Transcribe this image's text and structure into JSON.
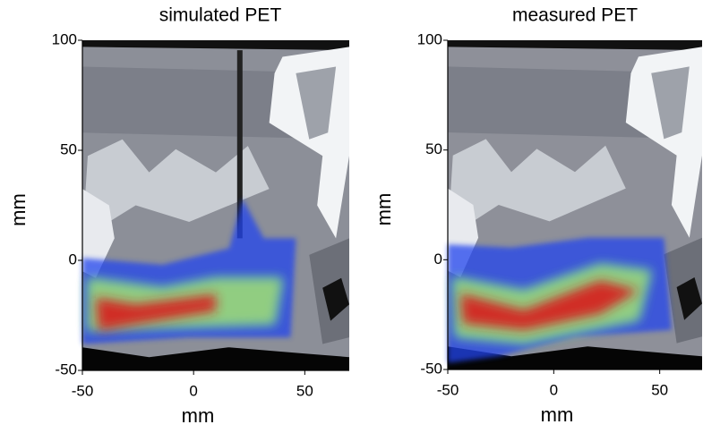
{
  "chart_data": [
    {
      "type": "image",
      "title": "simulated PET",
      "xlabel": "mm",
      "ylabel": "mm",
      "xlim": [
        -50,
        70
      ],
      "ylim": [
        -50,
        100
      ],
      "xticks": [
        -50,
        0,
        50
      ],
      "yticks": [
        -50,
        0,
        50,
        100
      ]
    },
    {
      "type": "image",
      "title": "measured PET",
      "xlabel": "mm",
      "ylabel": "mm",
      "xlim": [
        -50,
        70
      ],
      "ylim": [
        -50,
        100
      ],
      "xticks": [
        -50,
        0,
        50
      ],
      "yticks": [
        -50,
        0,
        50,
        100
      ]
    }
  ]
}
